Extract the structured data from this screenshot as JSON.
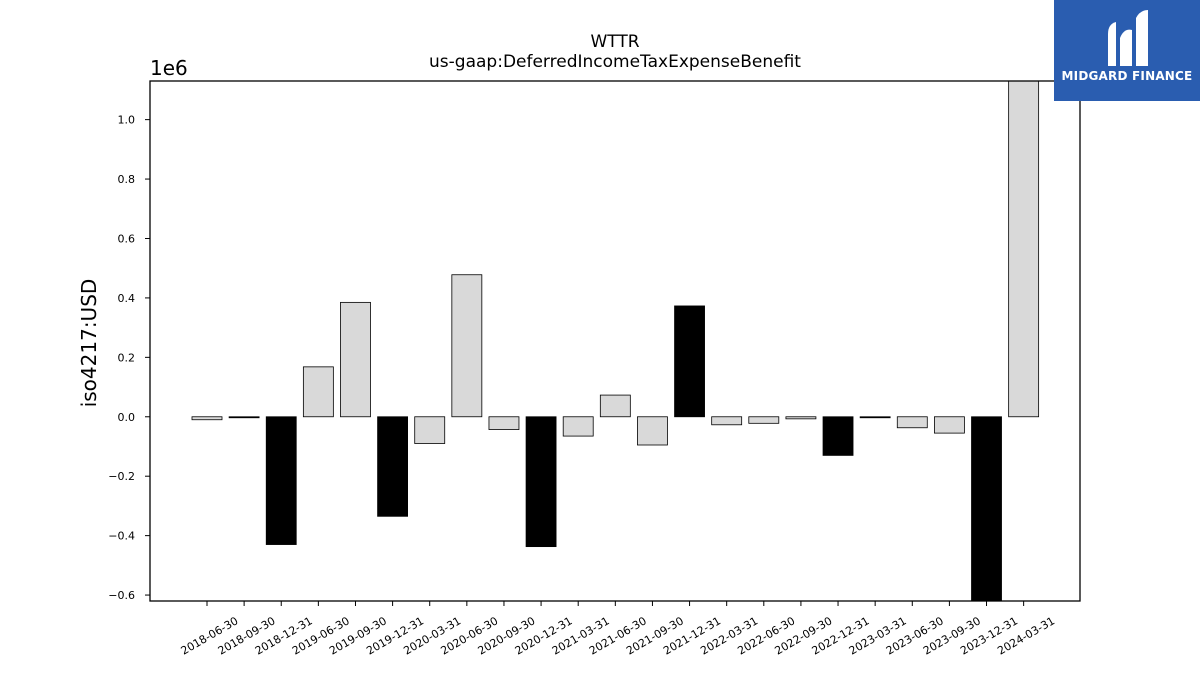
{
  "chart_data": {
    "type": "bar",
    "title": "WTTR",
    "subtitle": "us-gaap:DeferredIncomeTaxExpenseBenefit",
    "ylabel": "iso4217:USD",
    "y_multiplier_label": "1e6",
    "y_scale": 1000000,
    "ylim": [
      -620000,
      1130000
    ],
    "yticks": [
      -0.6,
      -0.4,
      -0.2,
      0.0,
      0.2,
      0.4,
      0.6,
      0.8,
      1.0
    ],
    "ytick_labels": [
      "−0.6",
      "−0.4",
      "−0.2",
      "0.0",
      "0.2",
      "0.4",
      "0.6",
      "0.8",
      "1.0"
    ],
    "categories": [
      "2018-06-30",
      "2018-09-30",
      "2018-12-31",
      "2019-06-30",
      "2019-09-30",
      "2019-12-31",
      "2020-03-31",
      "2020-06-30",
      "2020-09-30",
      "2020-12-31",
      "2021-03-31",
      "2021-06-30",
      "2021-09-30",
      "2021-12-31",
      "2022-03-31",
      "2022-06-30",
      "2022-09-30",
      "2022-12-31",
      "2023-03-31",
      "2023-06-30",
      "2023-09-30",
      "2023-12-31",
      "2024-03-31"
    ],
    "values": [
      -10000,
      -3000,
      -430000,
      168000,
      385000,
      -335000,
      -90000,
      478000,
      -43000,
      -437000,
      -65000,
      73000,
      -95000,
      373000,
      -27000,
      -22000,
      -7000,
      -130000,
      -3000,
      -37000,
      -55000,
      -620000,
      1130000
    ],
    "bar_colors": [
      "#d9d9d9",
      "#000000",
      "#000000",
      "#d9d9d9",
      "#d9d9d9",
      "#000000",
      "#d9d9d9",
      "#d9d9d9",
      "#d9d9d9",
      "#000000",
      "#d9d9d9",
      "#d9d9d9",
      "#d9d9d9",
      "#000000",
      "#d9d9d9",
      "#d9d9d9",
      "#d9d9d9",
      "#000000",
      "#000000",
      "#d9d9d9",
      "#d9d9d9",
      "#000000",
      "#d9d9d9"
    ],
    "grid": false,
    "legend": "none"
  },
  "logo": {
    "text": "MIDGARD FINANCE",
    "color": "#2a5db0"
  }
}
